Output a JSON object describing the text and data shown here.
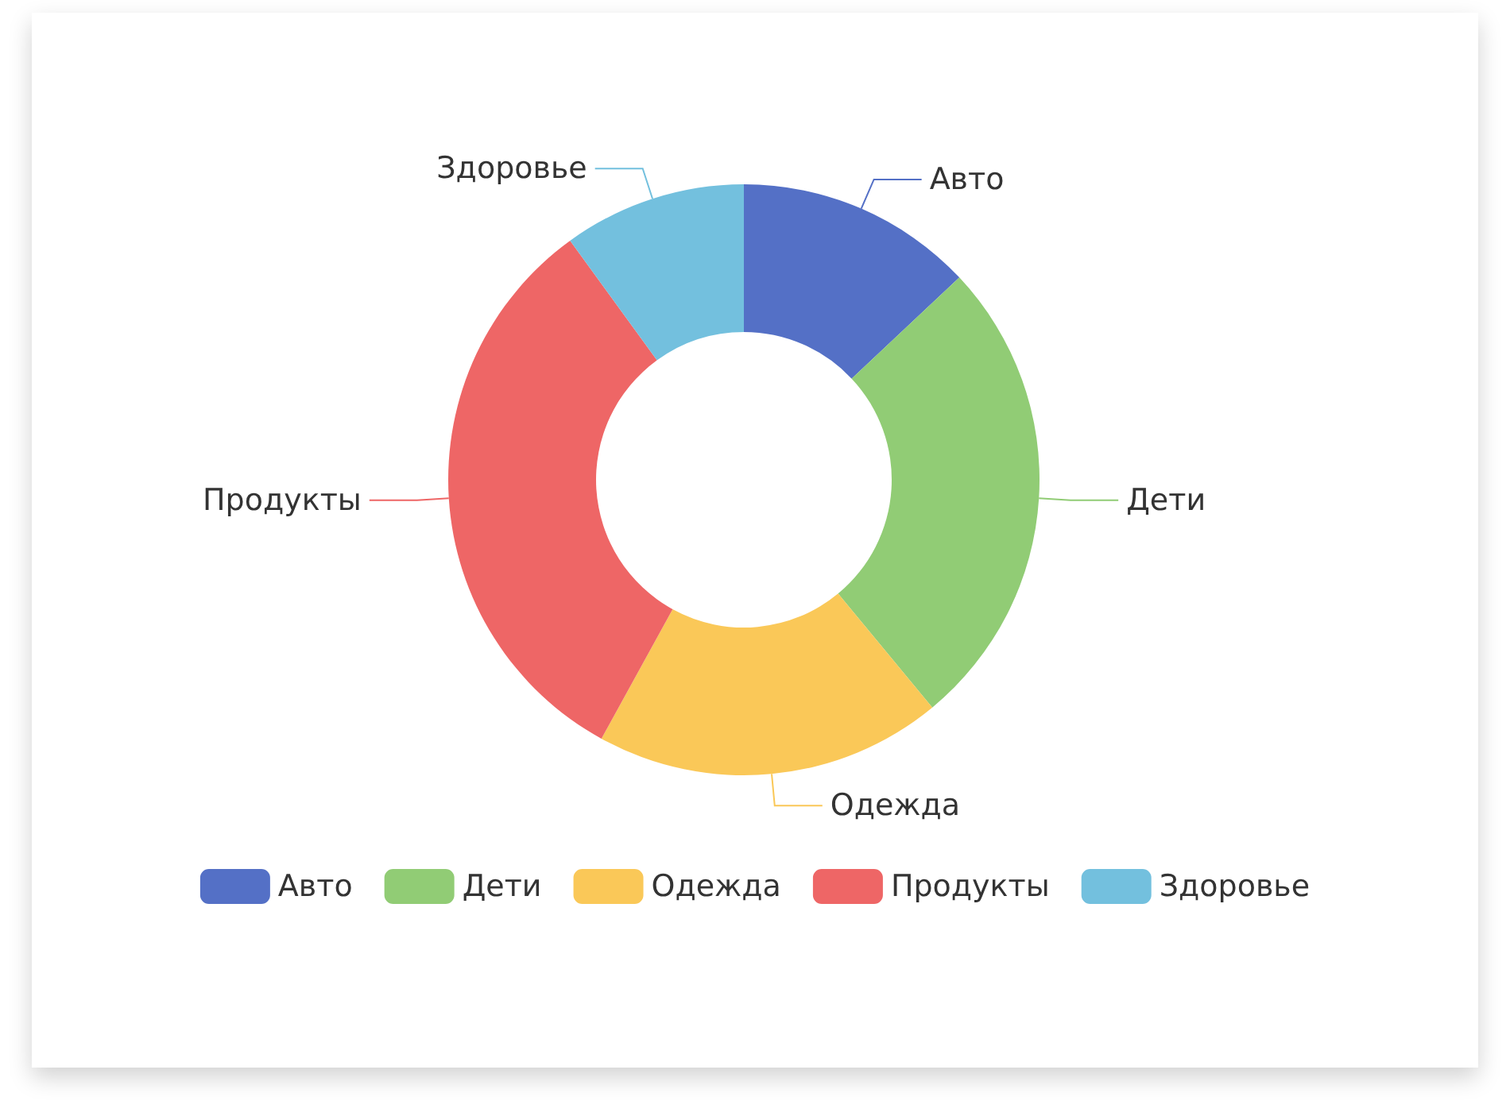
{
  "chart_data": {
    "type": "donut",
    "categories": [
      "Авто",
      "Дети",
      "Одежда",
      "Продукты",
      "Здоровье"
    ],
    "values": [
      13,
      26,
      19,
      32,
      10
    ],
    "colors": [
      "#5470c6",
      "#91cc75",
      "#fac858",
      "#ee6666",
      "#73c0de"
    ],
    "legend": "bottom"
  }
}
